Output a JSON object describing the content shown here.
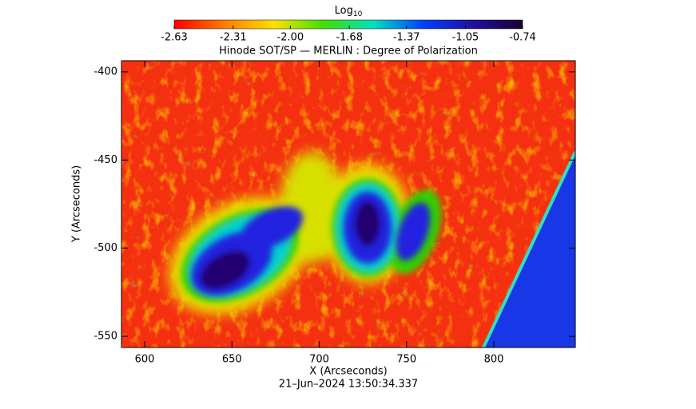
{
  "chart_data": {
    "type": "image",
    "title": "Hinode SOT/SP — MERLIN : Degree of Polarization",
    "xlabel": "X (Arcseconds)",
    "ylabel": "Y (Arcseconds)",
    "timestamp": "21–Jun–2024 13:50:34.337",
    "xlim": [
      586.7,
      846.7
    ],
    "xticks": [
      600,
      650,
      700,
      750,
      800
    ],
    "ylim": [
      -556.3,
      -393.7
    ],
    "yticks": [
      -400,
      -450,
      -500,
      -550
    ],
    "colorbar_label": "Log",
    "colorbar_label_subscript": "10",
    "clim": [
      -2.63,
      -0.74
    ],
    "cticks": [
      -2.63,
      -2.31,
      {
        "value": -2,
        "label": "-2.00"
      },
      -1.68,
      -1.37,
      -1.05,
      -0.74
    ],
    "colormap": [
      "#ff0000",
      "#ff7a00",
      "#ffe000",
      "#40e000",
      "#00e0c0",
      "#0040ff",
      "#2010a0",
      "#1a0030"
    ]
  }
}
